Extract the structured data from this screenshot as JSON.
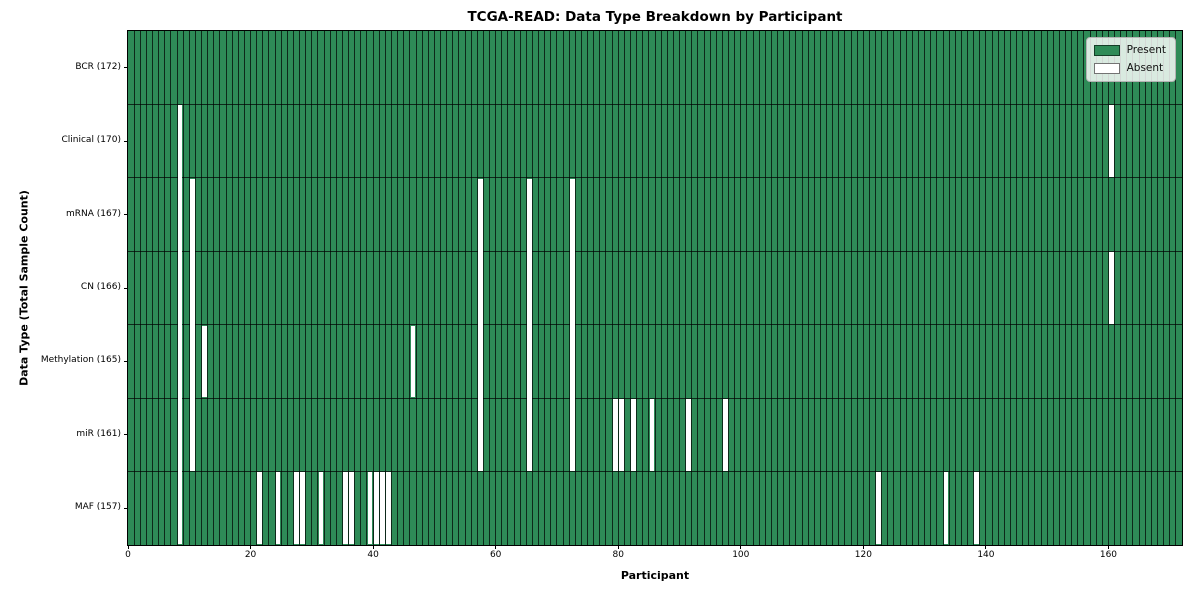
{
  "chart_data": {
    "type": "heatmap",
    "title": "TCGA-READ: Data Type Breakdown by Participant",
    "xlabel": "Participant",
    "ylabel": "Data Type (Total Sample Count)",
    "x_range": [
      0,
      172
    ],
    "n_participants": 172,
    "x_ticks": [
      0,
      20,
      40,
      60,
      80,
      100,
      120,
      140,
      160
    ],
    "grid": true,
    "legend_position": "upper right",
    "legend": [
      {
        "label": "Present",
        "color": "#2e8b57"
      },
      {
        "label": "Absent",
        "color": "#ffffff"
      }
    ],
    "colors": {
      "present": "#2e8b57",
      "absent": "#ffffff",
      "cell_edge": "rgba(0,0,0,0.70)",
      "legend_bg": "rgba(255,255,255,0.82)",
      "spine": "#000000"
    },
    "rows": [
      {
        "label": "BCR (172)",
        "data_type": "BCR",
        "present_count": 172,
        "absent_participants": []
      },
      {
        "label": "Clinical (170)",
        "data_type": "Clinical",
        "present_count": 170,
        "absent_participants": [
          8,
          160
        ]
      },
      {
        "label": "mRNA (167)",
        "data_type": "mRNA",
        "present_count": 167,
        "absent_participants": [
          8,
          10,
          57,
          65,
          72
        ]
      },
      {
        "label": "CN (166)",
        "data_type": "CN",
        "present_count": 166,
        "absent_participants": [
          8,
          10,
          57,
          65,
          72,
          160
        ]
      },
      {
        "label": "Methylation (165)",
        "data_type": "Methylation",
        "present_count": 165,
        "absent_participants": [
          8,
          10,
          12,
          46,
          57,
          65,
          72
        ]
      },
      {
        "label": "miR (161)",
        "data_type": "miR",
        "present_count": 161,
        "absent_participants": [
          8,
          10,
          57,
          65,
          72,
          79,
          80,
          82,
          85,
          91,
          97
        ]
      },
      {
        "label": "MAF (157)",
        "data_type": "MAF",
        "present_count": 157,
        "absent_participants": [
          8,
          21,
          24,
          27,
          28,
          31,
          35,
          36,
          39,
          40,
          41,
          42,
          122,
          133,
          138
        ]
      }
    ]
  }
}
